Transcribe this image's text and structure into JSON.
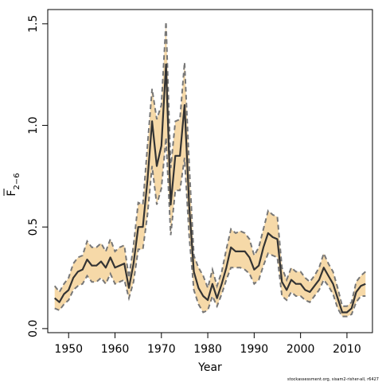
{
  "chart_data": {
    "type": "line",
    "xlabel": "Year",
    "ylabel": {
      "main": "F",
      "sub": "2−6"
    },
    "xlim": [
      1945.5,
      2015.5
    ],
    "ylim": [
      -0.02,
      1.57
    ],
    "x_ticks": [
      1950,
      1960,
      1970,
      1980,
      1990,
      2000,
      2010
    ],
    "y_ticks": [
      0.0,
      0.5,
      1.0,
      1.5
    ],
    "y_tick_labels": [
      "0.0",
      "0.5",
      "1.0",
      "1.5"
    ],
    "band_color": "#f6d9a8",
    "line_color": "#333333",
    "bound_color": "#777777",
    "grid": false,
    "series": [
      {
        "x": [
          1947,
          1948,
          1949,
          1950,
          1951,
          1952,
          1953,
          1954,
          1955,
          1956,
          1957,
          1958,
          1959,
          1960,
          1961,
          1962,
          1963,
          1964,
          1965,
          1966,
          1967,
          1968,
          1969,
          1970,
          1971,
          1972,
          1973,
          1974,
          1975,
          1976,
          1977,
          1978,
          1979,
          1980,
          1981,
          1982,
          1983,
          1984,
          1985,
          1986,
          1987,
          1988,
          1989,
          1990,
          1991,
          1992,
          1993,
          1994,
          1995,
          1996,
          1997,
          1998,
          1999,
          2000,
          2001,
          2002,
          2003,
          2004,
          2005,
          2006,
          2007,
          2008,
          2009,
          2010,
          2011,
          2012,
          2013,
          2014
        ],
        "values": [
          0.15,
          0.13,
          0.17,
          0.19,
          0.25,
          0.28,
          0.29,
          0.34,
          0.31,
          0.31,
          0.33,
          0.3,
          0.35,
          0.3,
          0.31,
          0.32,
          0.2,
          0.32,
          0.5,
          0.5,
          0.73,
          1.02,
          0.8,
          0.9,
          1.3,
          0.61,
          0.85,
          0.85,
          1.1,
          0.6,
          0.28,
          0.2,
          0.16,
          0.14,
          0.22,
          0.15,
          0.22,
          0.3,
          0.4,
          0.38,
          0.38,
          0.38,
          0.35,
          0.29,
          0.31,
          0.4,
          0.47,
          0.45,
          0.44,
          0.23,
          0.19,
          0.24,
          0.22,
          0.22,
          0.19,
          0.18,
          0.21,
          0.24,
          0.3,
          0.26,
          0.22,
          0.15,
          0.08,
          0.08,
          0.1,
          0.18,
          0.21,
          0.22
        ],
        "lower": [
          0.1,
          0.09,
          0.12,
          0.14,
          0.19,
          0.21,
          0.22,
          0.26,
          0.23,
          0.23,
          0.25,
          0.22,
          0.27,
          0.22,
          0.23,
          0.24,
          0.15,
          0.23,
          0.39,
          0.39,
          0.56,
          0.8,
          0.61,
          0.69,
          0.94,
          0.46,
          0.68,
          0.68,
          0.84,
          0.45,
          0.19,
          0.12,
          0.08,
          0.09,
          0.16,
          0.11,
          0.17,
          0.24,
          0.3,
          0.3,
          0.3,
          0.29,
          0.27,
          0.22,
          0.24,
          0.31,
          0.37,
          0.36,
          0.35,
          0.16,
          0.14,
          0.18,
          0.16,
          0.16,
          0.14,
          0.13,
          0.16,
          0.19,
          0.24,
          0.21,
          0.17,
          0.1,
          0.06,
          0.06,
          0.07,
          0.13,
          0.16,
          0.16
        ],
        "upper": [
          0.21,
          0.18,
          0.22,
          0.25,
          0.32,
          0.35,
          0.36,
          0.43,
          0.4,
          0.4,
          0.42,
          0.38,
          0.44,
          0.38,
          0.4,
          0.41,
          0.25,
          0.41,
          0.62,
          0.61,
          0.9,
          1.18,
          1.03,
          1.1,
          1.51,
          0.79,
          1.02,
          1.03,
          1.31,
          0.8,
          0.36,
          0.3,
          0.26,
          0.2,
          0.29,
          0.21,
          0.28,
          0.39,
          0.49,
          0.47,
          0.48,
          0.47,
          0.44,
          0.36,
          0.4,
          0.49,
          0.58,
          0.56,
          0.55,
          0.3,
          0.24,
          0.3,
          0.28,
          0.28,
          0.25,
          0.23,
          0.26,
          0.3,
          0.37,
          0.32,
          0.28,
          0.2,
          0.11,
          0.11,
          0.13,
          0.23,
          0.26,
          0.28
        ]
      }
    ]
  },
  "footer": "stockassessment.org, sisam2-risher-all, r6427"
}
